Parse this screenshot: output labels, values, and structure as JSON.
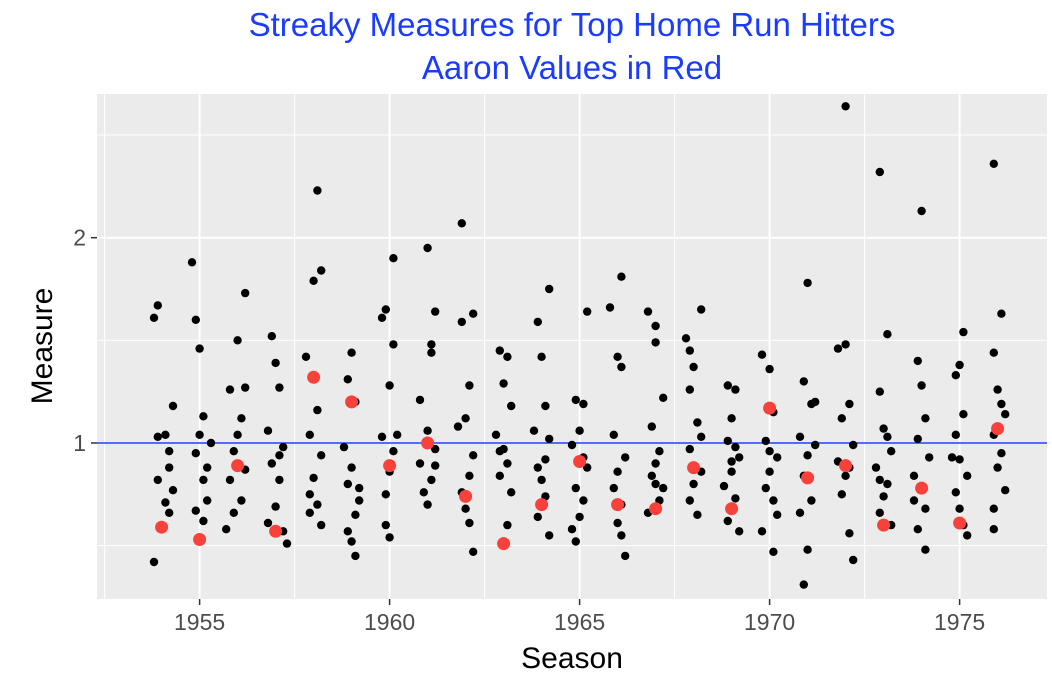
{
  "chart_data": {
    "type": "scatter",
    "title": "Streaky Measures for Top Home Run Hitters",
    "subtitle": "Aaron Values in Red",
    "xlabel": "Season",
    "ylabel": "Measure",
    "xlim": [
      1952.3,
      1977.3
    ],
    "ylim": [
      0.24,
      2.7
    ],
    "x_ticks": [
      1955,
      1960,
      1965,
      1970,
      1975
    ],
    "x_tick_labels": [
      "1955",
      "1960",
      "1965",
      "1970",
      "1975"
    ],
    "y_ticks": [
      1,
      2
    ],
    "y_tick_labels": [
      "1",
      "2"
    ],
    "reference_line": {
      "y": 1,
      "color": "#1a3cff"
    },
    "colors": {
      "title": "#1a3cff",
      "panel": "#ebebeb",
      "grid": "#ffffff",
      "points": "#000000",
      "highlight": "#f8413a"
    },
    "grid": true,
    "legend": "none",
    "series": [
      {
        "color": "#000000",
        "points": [
          [
            1953.9,
            1.67
          ],
          [
            1953.8,
            1.61
          ],
          [
            1954.1,
            1.04
          ],
          [
            1954.2,
            0.96
          ],
          [
            1954.3,
            0.77
          ],
          [
            1953.9,
            0.82
          ],
          [
            1954.2,
            0.66
          ],
          [
            1953.8,
            0.42
          ],
          [
            1954.3,
            1.18
          ],
          [
            1954.2,
            0.88
          ],
          [
            1954.1,
            0.71
          ],
          [
            1953.9,
            1.03
          ],
          [
            1954.8,
            1.88
          ],
          [
            1954.9,
            1.6
          ],
          [
            1955.0,
            1.46
          ],
          [
            1955.1,
            1.13
          ],
          [
            1954.9,
            0.95
          ],
          [
            1955.2,
            0.88
          ],
          [
            1955.1,
            0.82
          ],
          [
            1955.0,
            1.04
          ],
          [
            1955.2,
            0.72
          ],
          [
            1954.9,
            0.67
          ],
          [
            1955.1,
            0.62
          ],
          [
            1955.3,
            1.0
          ],
          [
            1956.2,
            1.73
          ],
          [
            1956.0,
            1.5
          ],
          [
            1955.8,
            1.26
          ],
          [
            1956.1,
            1.12
          ],
          [
            1956.0,
            1.04
          ],
          [
            1955.9,
            0.96
          ],
          [
            1956.2,
            0.87
          ],
          [
            1955.8,
            0.82
          ],
          [
            1956.1,
            0.72
          ],
          [
            1955.9,
            0.66
          ],
          [
            1955.7,
            0.58
          ],
          [
            1956.2,
            1.27
          ],
          [
            1956.9,
            1.52
          ],
          [
            1957.0,
            1.39
          ],
          [
            1957.1,
            1.27
          ],
          [
            1956.8,
            1.06
          ],
          [
            1957.2,
            0.98
          ],
          [
            1956.9,
            0.9
          ],
          [
            1957.1,
            0.82
          ],
          [
            1957.0,
            0.69
          ],
          [
            1957.2,
            0.57
          ],
          [
            1957.3,
            0.51
          ],
          [
            1956.8,
            0.61
          ],
          [
            1957.1,
            0.94
          ],
          [
            1958.1,
            2.23
          ],
          [
            1958.2,
            1.84
          ],
          [
            1958.0,
            1.79
          ],
          [
            1957.8,
            1.42
          ],
          [
            1958.1,
            1.16
          ],
          [
            1957.9,
            1.04
          ],
          [
            1958.2,
            0.94
          ],
          [
            1958.0,
            0.83
          ],
          [
            1957.9,
            0.75
          ],
          [
            1958.1,
            0.7
          ],
          [
            1958.2,
            0.6
          ],
          [
            1957.9,
            0.66
          ],
          [
            1959.0,
            1.44
          ],
          [
            1958.9,
            1.31
          ],
          [
            1959.1,
            1.2
          ],
          [
            1958.8,
            0.98
          ],
          [
            1959.0,
            0.88
          ],
          [
            1958.9,
            0.8
          ],
          [
            1959.2,
            0.72
          ],
          [
            1959.1,
            0.65
          ],
          [
            1958.9,
            0.57
          ],
          [
            1959.0,
            0.52
          ],
          [
            1959.1,
            0.45
          ],
          [
            1959.2,
            0.78
          ],
          [
            1960.1,
            1.9
          ],
          [
            1959.9,
            1.65
          ],
          [
            1959.8,
            1.61
          ],
          [
            1960.1,
            1.48
          ],
          [
            1960.0,
            1.28
          ],
          [
            1960.2,
            1.04
          ],
          [
            1959.8,
            1.03
          ],
          [
            1960.1,
            0.96
          ],
          [
            1960.0,
            0.86
          ],
          [
            1959.9,
            0.75
          ],
          [
            1959.9,
            0.6
          ],
          [
            1960.0,
            0.54
          ],
          [
            1961.0,
            1.95
          ],
          [
            1961.2,
            1.64
          ],
          [
            1961.1,
            1.44
          ],
          [
            1960.8,
            1.21
          ],
          [
            1961.0,
            1.06
          ],
          [
            1961.2,
            0.97
          ],
          [
            1960.8,
            0.9
          ],
          [
            1961.1,
            0.82
          ],
          [
            1960.9,
            0.76
          ],
          [
            1961.0,
            0.7
          ],
          [
            1961.2,
            0.89
          ],
          [
            1961.1,
            1.48
          ],
          [
            1961.9,
            2.07
          ],
          [
            1962.2,
            1.63
          ],
          [
            1961.9,
            1.59
          ],
          [
            1962.1,
            1.28
          ],
          [
            1962.0,
            1.12
          ],
          [
            1961.8,
            1.08
          ],
          [
            1962.2,
            0.94
          ],
          [
            1962.1,
            0.84
          ],
          [
            1961.9,
            0.76
          ],
          [
            1962.0,
            0.68
          ],
          [
            1962.1,
            0.61
          ],
          [
            1962.2,
            0.47
          ],
          [
            1962.9,
            1.45
          ],
          [
            1963.1,
            1.42
          ],
          [
            1963.0,
            1.29
          ],
          [
            1963.2,
            1.18
          ],
          [
            1962.8,
            1.04
          ],
          [
            1963.0,
            0.97
          ],
          [
            1963.1,
            0.9
          ],
          [
            1962.9,
            0.84
          ],
          [
            1963.2,
            0.76
          ],
          [
            1962.9,
            0.96
          ],
          [
            1963.1,
            0.6
          ],
          [
            1963.0,
            0.52
          ],
          [
            1964.2,
            1.75
          ],
          [
            1963.9,
            1.59
          ],
          [
            1964.0,
            1.42
          ],
          [
            1964.1,
            1.18
          ],
          [
            1963.8,
            1.06
          ],
          [
            1964.2,
            1.02
          ],
          [
            1963.9,
            0.88
          ],
          [
            1964.0,
            0.82
          ],
          [
            1964.1,
            0.74
          ],
          [
            1963.9,
            0.64
          ],
          [
            1964.2,
            0.55
          ],
          [
            1964.1,
            0.92
          ],
          [
            1965.2,
            1.64
          ],
          [
            1964.9,
            1.21
          ],
          [
            1965.1,
            1.19
          ],
          [
            1965.0,
            1.06
          ],
          [
            1964.8,
            0.99
          ],
          [
            1965.2,
            0.88
          ],
          [
            1964.9,
            0.78
          ],
          [
            1965.1,
            0.72
          ],
          [
            1965.0,
            0.64
          ],
          [
            1964.8,
            0.58
          ],
          [
            1964.9,
            0.52
          ],
          [
            1965.1,
            0.93
          ],
          [
            1966.1,
            1.81
          ],
          [
            1965.8,
            1.66
          ],
          [
            1966.0,
            1.42
          ],
          [
            1966.1,
            1.37
          ],
          [
            1965.9,
            1.04
          ],
          [
            1966.2,
            0.93
          ],
          [
            1966.0,
            0.86
          ],
          [
            1965.9,
            0.78
          ],
          [
            1966.1,
            0.7
          ],
          [
            1966.0,
            0.61
          ],
          [
            1966.2,
            0.45
          ],
          [
            1966.1,
            0.55
          ],
          [
            1966.8,
            1.64
          ],
          [
            1967.0,
            1.57
          ],
          [
            1967.0,
            1.49
          ],
          [
            1967.2,
            1.22
          ],
          [
            1966.9,
            1.08
          ],
          [
            1967.1,
            0.96
          ],
          [
            1967.0,
            0.9
          ],
          [
            1966.9,
            0.84
          ],
          [
            1967.2,
            0.78
          ],
          [
            1967.1,
            0.72
          ],
          [
            1966.8,
            0.66
          ],
          [
            1967.0,
            0.8
          ],
          [
            1968.2,
            1.65
          ],
          [
            1967.8,
            1.51
          ],
          [
            1967.9,
            1.45
          ],
          [
            1968.0,
            1.37
          ],
          [
            1967.9,
            1.26
          ],
          [
            1968.1,
            1.1
          ],
          [
            1967.9,
            0.97
          ],
          [
            1968.2,
            0.86
          ],
          [
            1968.0,
            0.8
          ],
          [
            1967.9,
            0.72
          ],
          [
            1968.1,
            0.65
          ],
          [
            1968.2,
            1.03
          ],
          [
            1968.9,
            1.28
          ],
          [
            1969.1,
            1.26
          ],
          [
            1969.0,
            1.12
          ],
          [
            1968.9,
            1.01
          ],
          [
            1969.2,
            0.93
          ],
          [
            1969.0,
            0.86
          ],
          [
            1968.8,
            0.79
          ],
          [
            1969.1,
            0.73
          ],
          [
            1968.9,
            0.62
          ],
          [
            1969.2,
            0.57
          ],
          [
            1969.1,
            0.98
          ],
          [
            1969.0,
            0.91
          ],
          [
            1969.8,
            1.43
          ],
          [
            1970.0,
            1.36
          ],
          [
            1970.1,
            1.15
          ],
          [
            1969.9,
            1.01
          ],
          [
            1970.2,
            0.93
          ],
          [
            1970.0,
            0.86
          ],
          [
            1969.9,
            0.78
          ],
          [
            1970.1,
            0.72
          ],
          [
            1970.2,
            0.65
          ],
          [
            1969.8,
            0.57
          ],
          [
            1970.1,
            0.47
          ],
          [
            1970.0,
            0.96
          ],
          [
            1971.0,
            1.78
          ],
          [
            1970.9,
            1.3
          ],
          [
            1971.1,
            1.19
          ],
          [
            1970.8,
            1.03
          ],
          [
            1971.2,
            0.99
          ],
          [
            1971.0,
            0.94
          ],
          [
            1970.9,
            0.84
          ],
          [
            1971.1,
            0.72
          ],
          [
            1970.8,
            0.66
          ],
          [
            1971.0,
            0.48
          ],
          [
            1970.9,
            0.31
          ],
          [
            1971.2,
            1.2
          ],
          [
            1972.0,
            2.64
          ],
          [
            1972.0,
            1.48
          ],
          [
            1971.8,
            1.46
          ],
          [
            1972.1,
            1.19
          ],
          [
            1971.9,
            1.12
          ],
          [
            1972.2,
            0.99
          ],
          [
            1971.8,
            0.91
          ],
          [
            1972.0,
            0.84
          ],
          [
            1971.9,
            0.75
          ],
          [
            1972.1,
            0.56
          ],
          [
            1972.2,
            0.43
          ],
          [
            1972.1,
            0.88
          ],
          [
            1972.9,
            2.32
          ],
          [
            1973.1,
            1.53
          ],
          [
            1972.9,
            1.25
          ],
          [
            1973.0,
            1.07
          ],
          [
            1973.2,
            0.96
          ],
          [
            1972.8,
            0.88
          ],
          [
            1973.1,
            0.8
          ],
          [
            1973.0,
            0.74
          ],
          [
            1972.9,
            0.66
          ],
          [
            1973.2,
            0.6
          ],
          [
            1973.1,
            1.03
          ],
          [
            1972.9,
            0.82
          ],
          [
            1974.0,
            2.13
          ],
          [
            1973.9,
            1.4
          ],
          [
            1974.0,
            1.28
          ],
          [
            1974.1,
            1.12
          ],
          [
            1973.9,
            1.02
          ],
          [
            1974.2,
            0.93
          ],
          [
            1973.8,
            0.84
          ],
          [
            1974.0,
            0.78
          ],
          [
            1974.1,
            0.68
          ],
          [
            1973.9,
            0.58
          ],
          [
            1974.1,
            0.48
          ],
          [
            1973.8,
            0.72
          ],
          [
            1975.1,
            1.54
          ],
          [
            1975.0,
            1.38
          ],
          [
            1974.9,
            1.33
          ],
          [
            1975.1,
            1.14
          ],
          [
            1974.9,
            1.04
          ],
          [
            1975.0,
            0.92
          ],
          [
            1975.2,
            0.84
          ],
          [
            1974.9,
            0.76
          ],
          [
            1975.0,
            0.68
          ],
          [
            1975.1,
            0.6
          ],
          [
            1975.2,
            0.55
          ],
          [
            1974.8,
            0.93
          ],
          [
            1975.9,
            2.36
          ],
          [
            1976.1,
            1.63
          ],
          [
            1975.9,
            1.44
          ],
          [
            1976.0,
            1.26
          ],
          [
            1976.2,
            1.14
          ],
          [
            1975.9,
            1.04
          ],
          [
            1976.1,
            0.95
          ],
          [
            1976.0,
            0.88
          ],
          [
            1976.2,
            0.77
          ],
          [
            1975.9,
            0.68
          ],
          [
            1975.9,
            0.58
          ],
          [
            1976.1,
            1.19
          ]
        ]
      },
      {
        "color": "#f8413a",
        "points": [
          [
            1954.0,
            0.59
          ],
          [
            1955.0,
            0.53
          ],
          [
            1956.0,
            0.89
          ],
          [
            1957.0,
            0.57
          ],
          [
            1958.0,
            1.32
          ],
          [
            1959.0,
            1.2
          ],
          [
            1960.0,
            0.89
          ],
          [
            1961.0,
            1.0
          ],
          [
            1962.0,
            0.74
          ],
          [
            1963.0,
            0.51
          ],
          [
            1964.0,
            0.7
          ],
          [
            1965.0,
            0.91
          ],
          [
            1966.0,
            0.7
          ],
          [
            1967.0,
            0.68
          ],
          [
            1968.0,
            0.88
          ],
          [
            1969.0,
            0.68
          ],
          [
            1970.0,
            1.17
          ],
          [
            1971.0,
            0.83
          ],
          [
            1972.0,
            0.89
          ],
          [
            1973.0,
            0.6
          ],
          [
            1974.0,
            0.78
          ],
          [
            1975.0,
            0.61
          ],
          [
            1976.0,
            1.07
          ]
        ]
      }
    ]
  }
}
